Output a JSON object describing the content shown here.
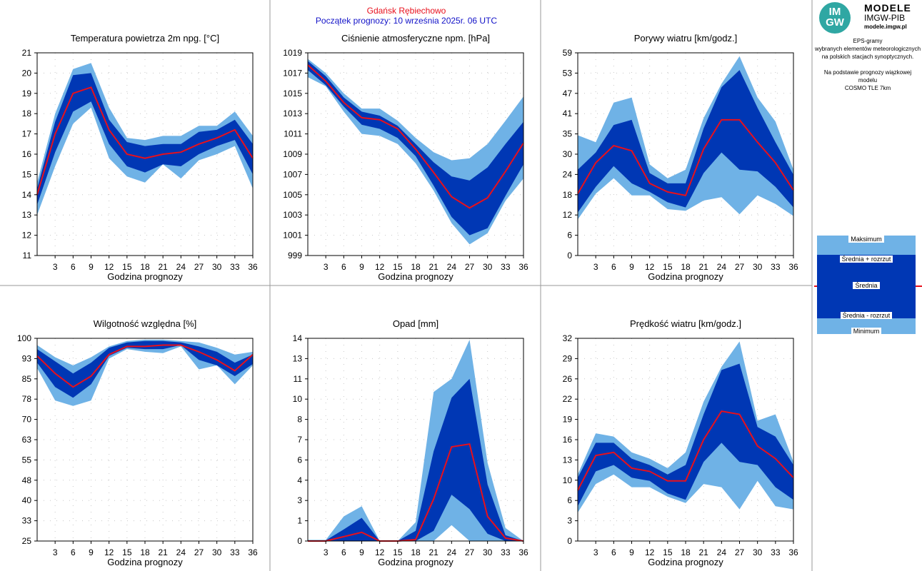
{
  "header": {
    "station": "Gdańsk Rębiechowo",
    "forecast_start": "Początek prognozy: 10 września 2025r. 06 UTC"
  },
  "logo": {
    "mark": "IM GW",
    "line1": "MODELE",
    "line2": "IMGW-PIB",
    "line3": "modele.imgw.pl"
  },
  "info": {
    "line1": "EPS-gramy",
    "line2": "wybranych elementów meteorologicznych",
    "line3": "na polskich stacjach  synoptycznych.",
    "line4": "Na podstawie prognozy wiązkowej modelu",
    "line5": "COSMO TLE 7km"
  },
  "legend": {
    "max": "Maksimum",
    "mean_plus": "Średnia + rozrzut",
    "mean": "Średnia",
    "mean_minus": "Średnia - rozrzut",
    "min": "Minimum"
  },
  "colors": {
    "range": "#6fb2e6",
    "spread": "#0037b4",
    "mean": "#e8101c",
    "station": "#e8101c",
    "forecast_start": "#1212c8"
  },
  "chart_data": [
    {
      "type": "area",
      "title": "Temperatura powietrza 2m npg. [°C]",
      "xlabel": "Godzina prognozy",
      "x": [
        0,
        3,
        6,
        9,
        12,
        15,
        18,
        21,
        24,
        27,
        30,
        33,
        36
      ],
      "xticks": [
        "3",
        "6",
        "9",
        "12",
        "15",
        "18",
        "21",
        "24",
        "27",
        "30",
        "33",
        "36"
      ],
      "ylim": [
        11,
        21
      ],
      "yticks": [
        "11",
        "12",
        "13",
        "14",
        "15",
        "16",
        "17",
        "18",
        "19",
        "20",
        "21"
      ],
      "series": [
        {
          "role": "max",
          "values": [
            14.6,
            18.0,
            20.2,
            20.5,
            18.3,
            16.8,
            16.7,
            16.9,
            16.9,
            17.4,
            17.4,
            18.1,
            16.9
          ]
        },
        {
          "role": "mean_plus",
          "values": [
            14.3,
            17.6,
            19.9,
            20.0,
            17.7,
            16.6,
            16.4,
            16.5,
            16.5,
            17.1,
            17.2,
            17.7,
            16.5
          ]
        },
        {
          "role": "mean",
          "values": [
            14.0,
            17.0,
            19.0,
            19.3,
            17.2,
            16.0,
            15.8,
            16.0,
            16.1,
            16.5,
            16.8,
            17.2,
            15.8
          ]
        },
        {
          "role": "mean_minus",
          "values": [
            13.5,
            16.1,
            18.1,
            18.6,
            16.5,
            15.4,
            15.1,
            15.5,
            15.4,
            16.0,
            16.4,
            16.7,
            15.0
          ]
        },
        {
          "role": "min",
          "values": [
            13.0,
            15.4,
            17.5,
            18.3,
            15.8,
            14.9,
            14.6,
            15.5,
            14.8,
            15.7,
            16.0,
            16.4,
            14.3
          ]
        }
      ]
    },
    {
      "type": "area",
      "title": "Ciśnienie atmosferyczne npm. [hPa]",
      "xlabel": "Godzina prognozy",
      "x": [
        0,
        3,
        6,
        9,
        12,
        15,
        18,
        21,
        24,
        27,
        30,
        33,
        36
      ],
      "xticks": [
        "3",
        "6",
        "9",
        "12",
        "15",
        "18",
        "21",
        "24",
        "27",
        "30",
        "33",
        "36"
      ],
      "ylim": [
        999,
        1019
      ],
      "yticks": [
        "999",
        "1001",
        "1003",
        "1005",
        "1007",
        "1009",
        "1011",
        "1013",
        "1015",
        "1017",
        "1019"
      ],
      "series": [
        {
          "role": "max",
          "values": [
            1018.4,
            1017.0,
            1015.0,
            1013.5,
            1013.5,
            1012.3,
            1010.6,
            1009.2,
            1008.4,
            1008.6,
            1010.0,
            1012.3,
            1014.7
          ]
        },
        {
          "role": "mean_plus",
          "values": [
            1018.2,
            1016.7,
            1014.6,
            1013.2,
            1012.8,
            1011.8,
            1010.0,
            1008.2,
            1006.8,
            1006.4,
            1007.7,
            1010.0,
            1012.2
          ]
        },
        {
          "role": "mean",
          "values": [
            1017.8,
            1016.2,
            1014.1,
            1012.6,
            1012.4,
            1011.5,
            1009.5,
            1007.2,
            1004.8,
            1003.7,
            1004.7,
            1007.3,
            1010.1
          ]
        },
        {
          "role": "mean_minus",
          "values": [
            1017.3,
            1015.8,
            1013.7,
            1011.9,
            1011.5,
            1010.6,
            1008.8,
            1005.9,
            1002.8,
            1001.0,
            1001.7,
            1004.9,
            1008.0
          ]
        },
        {
          "role": "min",
          "values": [
            1016.6,
            1015.7,
            1013.2,
            1011.0,
            1010.8,
            1010.0,
            1008.1,
            1005.4,
            1002.2,
            1000.1,
            1001.2,
            1004.4,
            1006.6
          ]
        }
      ]
    },
    {
      "type": "area",
      "title": "Porywy wiatru [km/godz.]",
      "xlabel": "Godzina prognozy",
      "x": [
        0,
        3,
        6,
        9,
        12,
        15,
        18,
        21,
        24,
        27,
        30,
        33,
        36
      ],
      "xticks": [
        "3",
        "6",
        "9",
        "12",
        "15",
        "18",
        "21",
        "24",
        "27",
        "30",
        "33",
        "36"
      ],
      "ylim": [
        0,
        59
      ],
      "yticks": [
        "0",
        "6",
        "12",
        "18",
        "24",
        "30",
        "35",
        "41",
        "47",
        "53",
        "59"
      ],
      "series": [
        {
          "role": "max",
          "values": [
            35.0,
            33.0,
            44.5,
            46.0,
            26.5,
            22.5,
            25.0,
            40.0,
            50.0,
            58.0,
            46.0,
            39.0,
            25.0
          ]
        },
        {
          "role": "mean_plus",
          "values": [
            25.0,
            30.0,
            38.0,
            39.5,
            24.0,
            21.0,
            21.0,
            37.0,
            49.0,
            54.0,
            43.0,
            33.0,
            23.5
          ]
        },
        {
          "role": "mean",
          "values": [
            18.0,
            27.0,
            32.0,
            30.5,
            21.0,
            18.5,
            17.5,
            31.0,
            39.5,
            39.5,
            33.0,
            27.0,
            19.0
          ]
        },
        {
          "role": "mean_minus",
          "values": [
            12.5,
            20.0,
            26.0,
            21.0,
            18.5,
            15.5,
            14.0,
            24.0,
            30.0,
            25.0,
            24.5,
            20.0,
            14.0
          ]
        },
        {
          "role": "min",
          "values": [
            10.5,
            18.0,
            22.5,
            17.5,
            17.5,
            13.5,
            13.0,
            16.0,
            17.0,
            12.0,
            17.5,
            15.0,
            11.5
          ]
        }
      ]
    },
    {
      "type": "area",
      "title": "Wilgotność względna [%]",
      "xlabel": "Godzina prognozy",
      "x": [
        0,
        3,
        6,
        9,
        12,
        15,
        18,
        21,
        24,
        27,
        30,
        33,
        36
      ],
      "xticks": [
        "3",
        "6",
        "9",
        "12",
        "15",
        "18",
        "21",
        "24",
        "27",
        "30",
        "33",
        "36"
      ],
      "ylim": [
        25,
        100
      ],
      "yticks": [
        "25",
        "33",
        "40",
        "48",
        "55",
        "63",
        "70",
        "78",
        "85",
        "93",
        "100"
      ],
      "series": [
        {
          "role": "max",
          "values": [
            97.5,
            93.0,
            90.0,
            93.0,
            97.0,
            99.0,
            99.5,
            99.5,
            99.0,
            98.5,
            96.5,
            94.0,
            95.0
          ]
        },
        {
          "role": "mean_plus",
          "values": [
            96.0,
            91.5,
            87.0,
            91.0,
            96.5,
            98.5,
            99.0,
            99.0,
            98.5,
            97.0,
            95.0,
            91.0,
            94.0
          ]
        },
        {
          "role": "mean",
          "values": [
            93.5,
            87.0,
            82.0,
            86.0,
            94.0,
            97.0,
            97.0,
            97.5,
            97.5,
            95.0,
            92.0,
            88.0,
            94.0
          ]
        },
        {
          "role": "mean_minus",
          "values": [
            91.0,
            82.0,
            78.0,
            83.0,
            93.5,
            96.5,
            96.0,
            96.0,
            97.5,
            92.0,
            90.0,
            86.0,
            90.5
          ]
        },
        {
          "role": "min",
          "values": [
            89.0,
            77.0,
            75.0,
            77.0,
            92.5,
            96.0,
            95.0,
            94.5,
            97.0,
            88.5,
            90.0,
            83.0,
            90.0
          ]
        }
      ]
    },
    {
      "type": "area",
      "title": "Opad [mm]",
      "xlabel": "Godzina prognozy",
      "x": [
        0,
        3,
        6,
        9,
        12,
        15,
        18,
        21,
        24,
        27,
        30,
        33,
        36
      ],
      "xticks": [
        "3",
        "6",
        "9",
        "12",
        "15",
        "18",
        "21",
        "24",
        "27",
        "30",
        "33",
        "36"
      ],
      "ylim": [
        0,
        14
      ],
      "yticks": [
        "0",
        "1",
        "3",
        "4",
        "6",
        "7",
        "8",
        "10",
        "11",
        "13",
        "14"
      ],
      "series": [
        {
          "role": "max",
          "values": [
            0.08,
            0.08,
            1.7,
            2.4,
            0.0,
            0.0,
            1.3,
            10.3,
            11.2,
            13.9,
            5.4,
            0.9,
            0.0
          ]
        },
        {
          "role": "mean_plus",
          "values": [
            0.05,
            0.05,
            0.8,
            1.6,
            0.0,
            0.0,
            0.7,
            6.2,
            9.9,
            11.2,
            3.9,
            0.4,
            0.0
          ]
        },
        {
          "role": "mean",
          "values": [
            0.0,
            0.0,
            0.3,
            0.6,
            0.0,
            0.0,
            0.1,
            2.9,
            6.5,
            6.7,
            1.7,
            0.2,
            0.0
          ]
        },
        {
          "role": "mean_minus",
          "values": [
            0.0,
            0.0,
            0.0,
            0.0,
            0.0,
            0.0,
            0.0,
            0.7,
            3.2,
            2.2,
            0.5,
            0.0,
            0.0
          ]
        },
        {
          "role": "min",
          "values": [
            0.0,
            0.0,
            0.0,
            0.0,
            0.0,
            0.0,
            0.0,
            0.0,
            1.1,
            0.0,
            0.0,
            0.0,
            0.0
          ]
        }
      ]
    },
    {
      "type": "area",
      "title": "Prędkość wiatru [km/godz.]",
      "xlabel": "Godzina prognozy",
      "x": [
        0,
        3,
        6,
        9,
        12,
        15,
        18,
        21,
        24,
        27,
        30,
        33,
        36
      ],
      "xticks": [
        "3",
        "6",
        "9",
        "12",
        "15",
        "18",
        "21",
        "24",
        "27",
        "30",
        "33",
        "36"
      ],
      "ylim": [
        0,
        32
      ],
      "yticks": [
        "0",
        "3",
        "6",
        "10",
        "13",
        "16",
        "19",
        "22",
        "26",
        "29",
        "32"
      ],
      "series": [
        {
          "role": "max",
          "values": [
            10.5,
            17.0,
            16.5,
            14.0,
            13.0,
            11.5,
            14.0,
            22.0,
            27.5,
            31.5,
            19.0,
            20.0,
            12.5
          ]
        },
        {
          "role": "mean_plus",
          "values": [
            10.0,
            15.5,
            15.5,
            13.0,
            12.0,
            10.5,
            12.0,
            20.0,
            27.0,
            28.0,
            18.0,
            16.5,
            12.0
          ]
        },
        {
          "role": "mean",
          "values": [
            8.0,
            13.5,
            14.0,
            11.5,
            11.0,
            9.5,
            9.5,
            16.0,
            20.5,
            20.0,
            15.0,
            13.0,
            10.0
          ]
        },
        {
          "role": "mean_minus",
          "values": [
            5.5,
            11.0,
            12.0,
            10.0,
            9.5,
            7.5,
            6.5,
            12.5,
            15.5,
            12.5,
            12.0,
            8.5,
            6.5
          ]
        },
        {
          "role": "min",
          "values": [
            4.5,
            9.0,
            10.5,
            8.5,
            8.5,
            7.0,
            6.0,
            9.0,
            8.5,
            5.0,
            9.5,
            5.5,
            5.0
          ]
        }
      ]
    }
  ]
}
